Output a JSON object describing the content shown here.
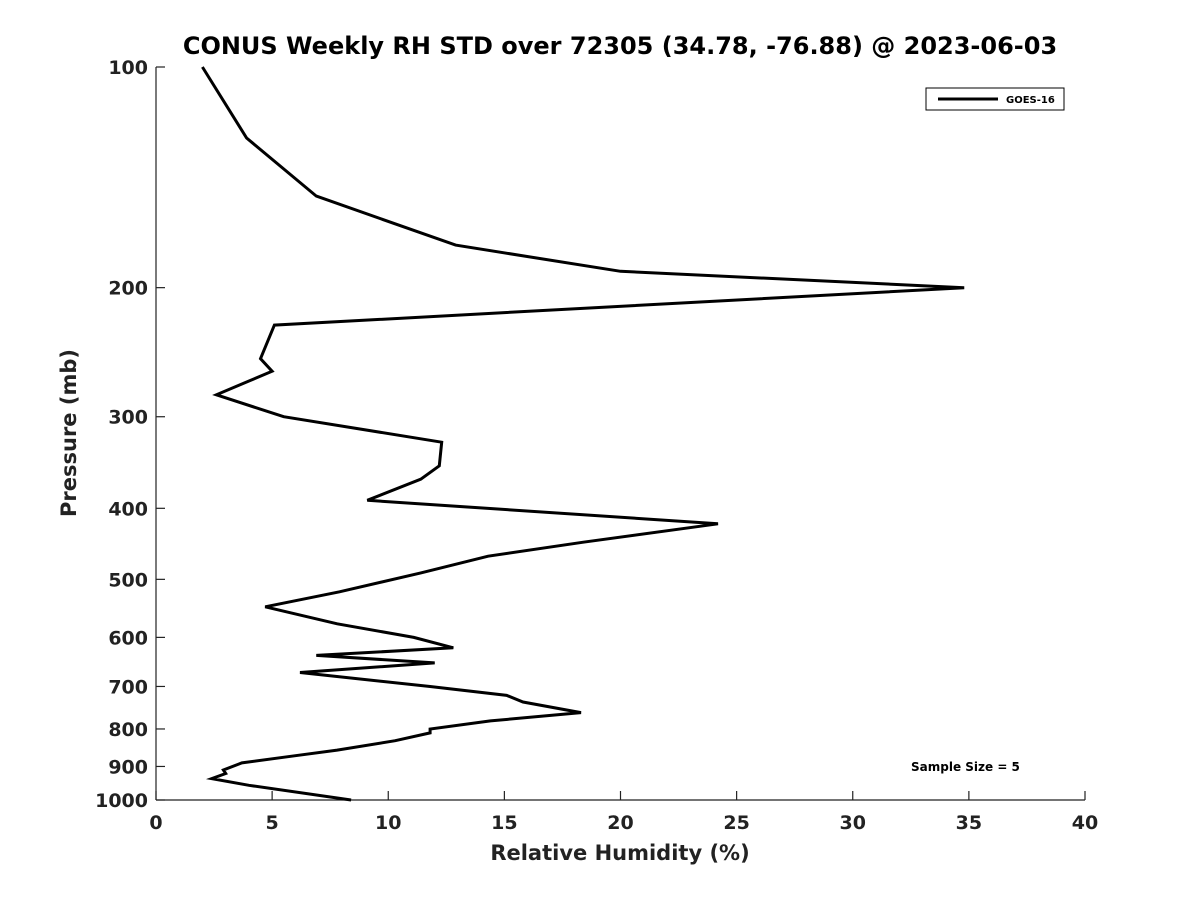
{
  "chart_data": {
    "type": "line",
    "title": "CONUS Weekly RH STD over 72305 (34.78, -76.88) @ 2023-06-03",
    "xlabel": "Relative Humidity (%)",
    "ylabel": "Pressure (mb)",
    "xlim": [
      0,
      40
    ],
    "ylim": [
      100,
      1000
    ],
    "y_scale": "log",
    "y_reversed": true,
    "x_ticks": [
      0,
      5,
      10,
      15,
      20,
      25,
      30,
      35,
      40
    ],
    "y_ticks": [
      100,
      200,
      300,
      400,
      500,
      600,
      700,
      800,
      900,
      1000
    ],
    "grid": false,
    "legend_position": "top-right",
    "annotation": "Sample Size = 5",
    "series": [
      {
        "name": "GOES-16",
        "color": "#000000",
        "x": [
          2.0,
          3.9,
          6.9,
          12.9,
          20.0,
          34.8,
          5.1,
          4.5,
          5.0,
          2.6,
          5.5,
          12.3,
          12.2,
          11.4,
          9.1,
          24.2,
          18.4,
          14.3,
          11.4,
          7.9,
          4.7,
          7.8,
          11.1,
          12.8,
          6.9,
          12.0,
          6.2,
          11.8,
          15.1,
          15.8,
          18.3,
          14.4,
          11.8,
          11.8,
          10.3,
          7.8,
          6.0,
          3.7,
          2.9,
          3.0,
          2.4,
          4.0,
          8.4
        ],
        "y": [
          100,
          125,
          150,
          175,
          190,
          200,
          225,
          250,
          260,
          280,
          300,
          325,
          350,
          365,
          390,
          420,
          445,
          465,
          490,
          520,
          545,
          575,
          600,
          620,
          635,
          650,
          670,
          700,
          720,
          735,
          760,
          780,
          800,
          810,
          830,
          855,
          870,
          890,
          910,
          920,
          935,
          955,
          1000
        ]
      }
    ]
  }
}
